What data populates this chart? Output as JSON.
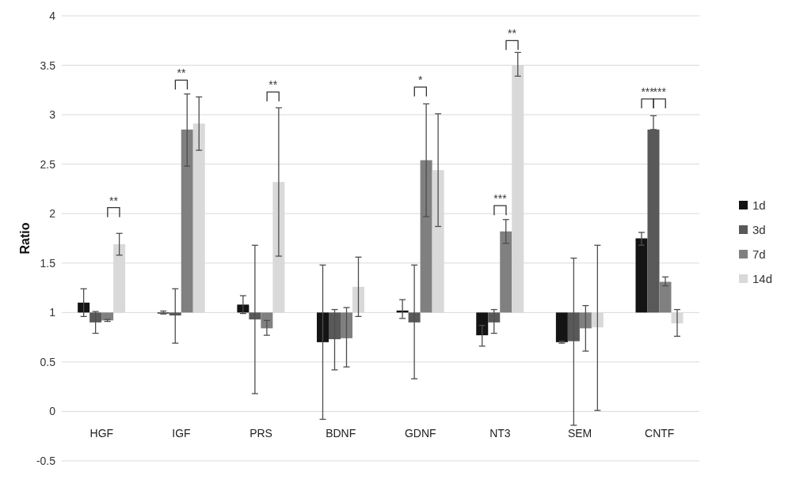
{
  "chart_data": {
    "type": "bar",
    "ylabel": "Ratio",
    "categories": [
      "HGF",
      "IGF",
      "PRS",
      "BDNF",
      "GDNF",
      "NT3",
      "SEM",
      "CNTF"
    ],
    "series": [
      {
        "name": "1d",
        "color": "#141414",
        "base": [
          1,
          1,
          1,
          1,
          1,
          1,
          1,
          1
        ],
        "values": [
          0.1,
          -0.01,
          0.08,
          -0.3,
          0.02,
          -0.23,
          -0.3,
          0.75
        ],
        "errors": [
          [
            0.96,
            1.24
          ],
          [
            0.985,
            1.015
          ],
          [
            0.99,
            1.17
          ],
          [
            -0.08,
            1.48
          ],
          [
            0.94,
            1.13
          ],
          [
            0.66,
            0.87
          ],
          [
            0.69,
            0.71
          ],
          [
            1.68,
            1.81
          ]
        ]
      },
      {
        "name": "3d",
        "color": "#595959",
        "base": [
          1,
          1,
          1,
          1,
          1,
          1,
          1,
          1
        ],
        "values": [
          -0.1,
          -0.03,
          -0.07,
          -0.27,
          -0.1,
          -0.1,
          -0.29,
          1.85
        ],
        "errors": [
          [
            0.79,
            1.01
          ],
          [
            0.69,
            1.24
          ],
          [
            0.18,
            1.68
          ],
          [
            0.42,
            1.03
          ],
          [
            0.33,
            1.48
          ],
          [
            0.79,
            1.03
          ],
          [
            -0.14,
            1.55
          ],
          [
            2.85,
            2.99
          ]
        ]
      },
      {
        "name": "7d",
        "color": "#808080",
        "base": [
          1,
          1,
          1,
          1,
          1,
          1,
          1,
          1
        ],
        "values": [
          -0.08,
          1.85,
          -0.16,
          -0.26,
          1.54,
          0.82,
          -0.16,
          0.31
        ],
        "errors": [
          [
            0.91,
            0.93
          ],
          [
            2.48,
            3.21
          ],
          [
            0.77,
            0.92
          ],
          [
            0.45,
            1.05
          ],
          [
            1.97,
            3.11
          ],
          [
            1.7,
            1.94
          ],
          [
            0.61,
            1.07
          ],
          [
            1.27,
            1.36
          ]
        ]
      },
      {
        "name": "14d",
        "color": "#d9d9d9",
        "base": [
          1,
          1,
          1,
          1,
          1,
          1,
          1,
          1
        ],
        "values": [
          0.69,
          1.91,
          1.32,
          0.26,
          1.44,
          2.5,
          -0.15,
          -0.11
        ],
        "errors": [
          [
            1.58,
            1.8
          ],
          [
            2.64,
            3.18
          ],
          [
            1.57,
            3.07
          ],
          [
            0.96,
            1.56
          ],
          [
            1.87,
            3.01
          ],
          [
            3.39,
            3.63
          ],
          [
            0.01,
            1.68
          ],
          [
            0.76,
            1.03
          ]
        ]
      }
    ],
    "ylim": [
      -0.5,
      4
    ],
    "yticks": [
      -0.5,
      0,
      0.5,
      1,
      1.5,
      2,
      2.5,
      3,
      3.5,
      4
    ],
    "grid": "y",
    "legend": "right",
    "annotations": [
      "**",
      "**",
      "**",
      "*",
      "***",
      "**",
      "***",
      "***"
    ]
  }
}
